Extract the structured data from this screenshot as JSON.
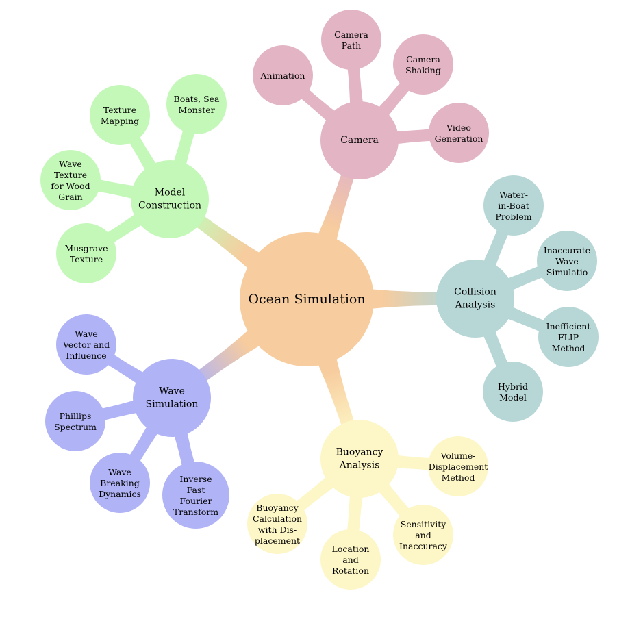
{
  "root": {
    "label": [
      "Ocean Simulation"
    ],
    "color": "#f7cc9e"
  },
  "branches": [
    {
      "id": "camera",
      "label": [
        "Camera"
      ],
      "color": "#e2b4c4",
      "children": [
        {
          "id": "animation",
          "label": [
            "Animation"
          ]
        },
        {
          "id": "camera-path",
          "label": [
            "Camera",
            "Path"
          ]
        },
        {
          "id": "camera-shaking",
          "label": [
            "Camera",
            "Shaking"
          ]
        },
        {
          "id": "video-generation",
          "label": [
            "Video",
            "Generation"
          ]
        }
      ]
    },
    {
      "id": "collision-analysis",
      "label": [
        "Collision",
        "Analysis"
      ],
      "color": "#b7d6d6",
      "children": [
        {
          "id": "water-in-boat",
          "label": [
            "Water-",
            "in-Boat",
            "Problem"
          ]
        },
        {
          "id": "inaccurate-wave",
          "label": [
            "Inaccurate",
            "Wave",
            "Simulatio"
          ]
        },
        {
          "id": "inefficient-flip",
          "label": [
            "Inefficient",
            "FLIP",
            "Method"
          ]
        },
        {
          "id": "hybrid-model",
          "label": [
            "Hybrid",
            "Model"
          ]
        }
      ]
    },
    {
      "id": "buoyancy-analysis",
      "label": [
        "Buoyancy",
        "Analysis"
      ],
      "color": "#fdf6c6",
      "children": [
        {
          "id": "volume-displacement",
          "label": [
            "Volume-",
            "Displacement",
            "Method"
          ]
        },
        {
          "id": "sensitivity",
          "label": [
            "Sensitivity",
            "and",
            "Inaccuracy"
          ]
        },
        {
          "id": "location-rotation",
          "label": [
            "Location",
            "and",
            "Rotation"
          ]
        },
        {
          "id": "buoyancy-calculation",
          "label": [
            "Buoyancy",
            "Calculation",
            "with Dis-",
            "placement"
          ]
        }
      ]
    },
    {
      "id": "wave-simulation",
      "label": [
        "Wave",
        "Simulation"
      ],
      "color": "#b0b3f5",
      "children": [
        {
          "id": "inverse-fft",
          "label": [
            "Inverse",
            "Fast",
            "Fourier",
            "Transform"
          ]
        },
        {
          "id": "wave-breaking",
          "label": [
            "Wave",
            "Breaking",
            "Dynamics"
          ]
        },
        {
          "id": "phillips-spectrum",
          "label": [
            "Phillips",
            "Spectrum"
          ]
        },
        {
          "id": "wave-vector",
          "label": [
            "Wave",
            "Vector and",
            "Influence"
          ]
        }
      ]
    },
    {
      "id": "model-construction",
      "label": [
        "Model",
        "Construction"
      ],
      "color": "#c4f8b9",
      "children": [
        {
          "id": "musgrave-texture",
          "label": [
            "Musgrave",
            "Texture"
          ]
        },
        {
          "id": "wave-texture-wood",
          "label": [
            "Wave",
            "Texture",
            "for Wood",
            "Grain"
          ]
        },
        {
          "id": "texture-mapping",
          "label": [
            "Texture",
            "Mapping"
          ]
        },
        {
          "id": "boats-sea-monster",
          "label": [
            "Boats, Sea",
            "Monster"
          ]
        }
      ]
    }
  ]
}
